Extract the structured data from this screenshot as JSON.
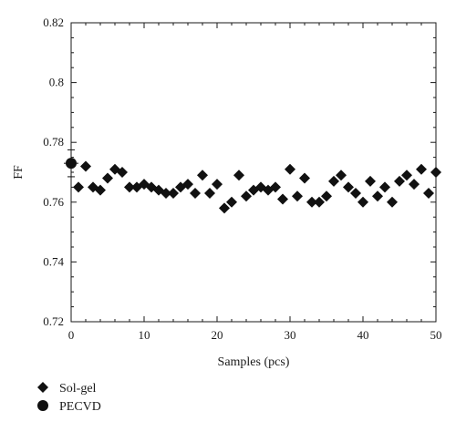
{
  "chart_data": {
    "type": "scatter",
    "title": "",
    "xlabel": "Samples (pcs)",
    "ylabel": "FF",
    "xlim": [
      0,
      50
    ],
    "ylim": [
      0.72,
      0.82
    ],
    "xticks": [
      0,
      10,
      20,
      30,
      40,
      50
    ],
    "yticks": [
      0.72,
      0.74,
      0.76,
      0.78,
      0.8,
      0.82
    ],
    "ytick_labels": [
      "0.72",
      "0.74",
      "0.76",
      "0.78",
      "0.8",
      "0.82"
    ],
    "grid": false,
    "legend_position": "bottom-left",
    "series": [
      {
        "name": "Sol-gel",
        "marker": "diamond",
        "color": "#111111",
        "points": [
          [
            1,
            0.765
          ],
          [
            2,
            0.772
          ],
          [
            3,
            0.765
          ],
          [
            4,
            0.764
          ],
          [
            5,
            0.768
          ],
          [
            6,
            0.771
          ],
          [
            7,
            0.77
          ],
          [
            8,
            0.765
          ],
          [
            9,
            0.765
          ],
          [
            10,
            0.766
          ],
          [
            11,
            0.765
          ],
          [
            12,
            0.764
          ],
          [
            13,
            0.763
          ],
          [
            14,
            0.763
          ],
          [
            15,
            0.765
          ],
          [
            16,
            0.766
          ],
          [
            17,
            0.763
          ],
          [
            18,
            0.769
          ],
          [
            19,
            0.763
          ],
          [
            20,
            0.766
          ],
          [
            21,
            0.758
          ],
          [
            22,
            0.76
          ],
          [
            23,
            0.769
          ],
          [
            24,
            0.762
          ],
          [
            25,
            0.764
          ],
          [
            26,
            0.765
          ],
          [
            27,
            0.764
          ],
          [
            28,
            0.765
          ],
          [
            29,
            0.761
          ],
          [
            30,
            0.771
          ],
          [
            31,
            0.762
          ],
          [
            32,
            0.768
          ],
          [
            33,
            0.76
          ],
          [
            34,
            0.76
          ],
          [
            35,
            0.762
          ],
          [
            36,
            0.767
          ],
          [
            37,
            0.769
          ],
          [
            38,
            0.765
          ],
          [
            39,
            0.763
          ],
          [
            40,
            0.76
          ],
          [
            41,
            0.767
          ],
          [
            42,
            0.762
          ],
          [
            43,
            0.765
          ],
          [
            44,
            0.76
          ],
          [
            45,
            0.767
          ],
          [
            46,
            0.769
          ],
          [
            47,
            0.766
          ],
          [
            48,
            0.771
          ],
          [
            49,
            0.763
          ],
          [
            50,
            0.77
          ]
        ]
      },
      {
        "name": "PECVD",
        "marker": "circle",
        "color": "#111111",
        "points": [
          [
            0,
            0.773
          ]
        ],
        "error": [
          0.0045
        ]
      }
    ]
  }
}
